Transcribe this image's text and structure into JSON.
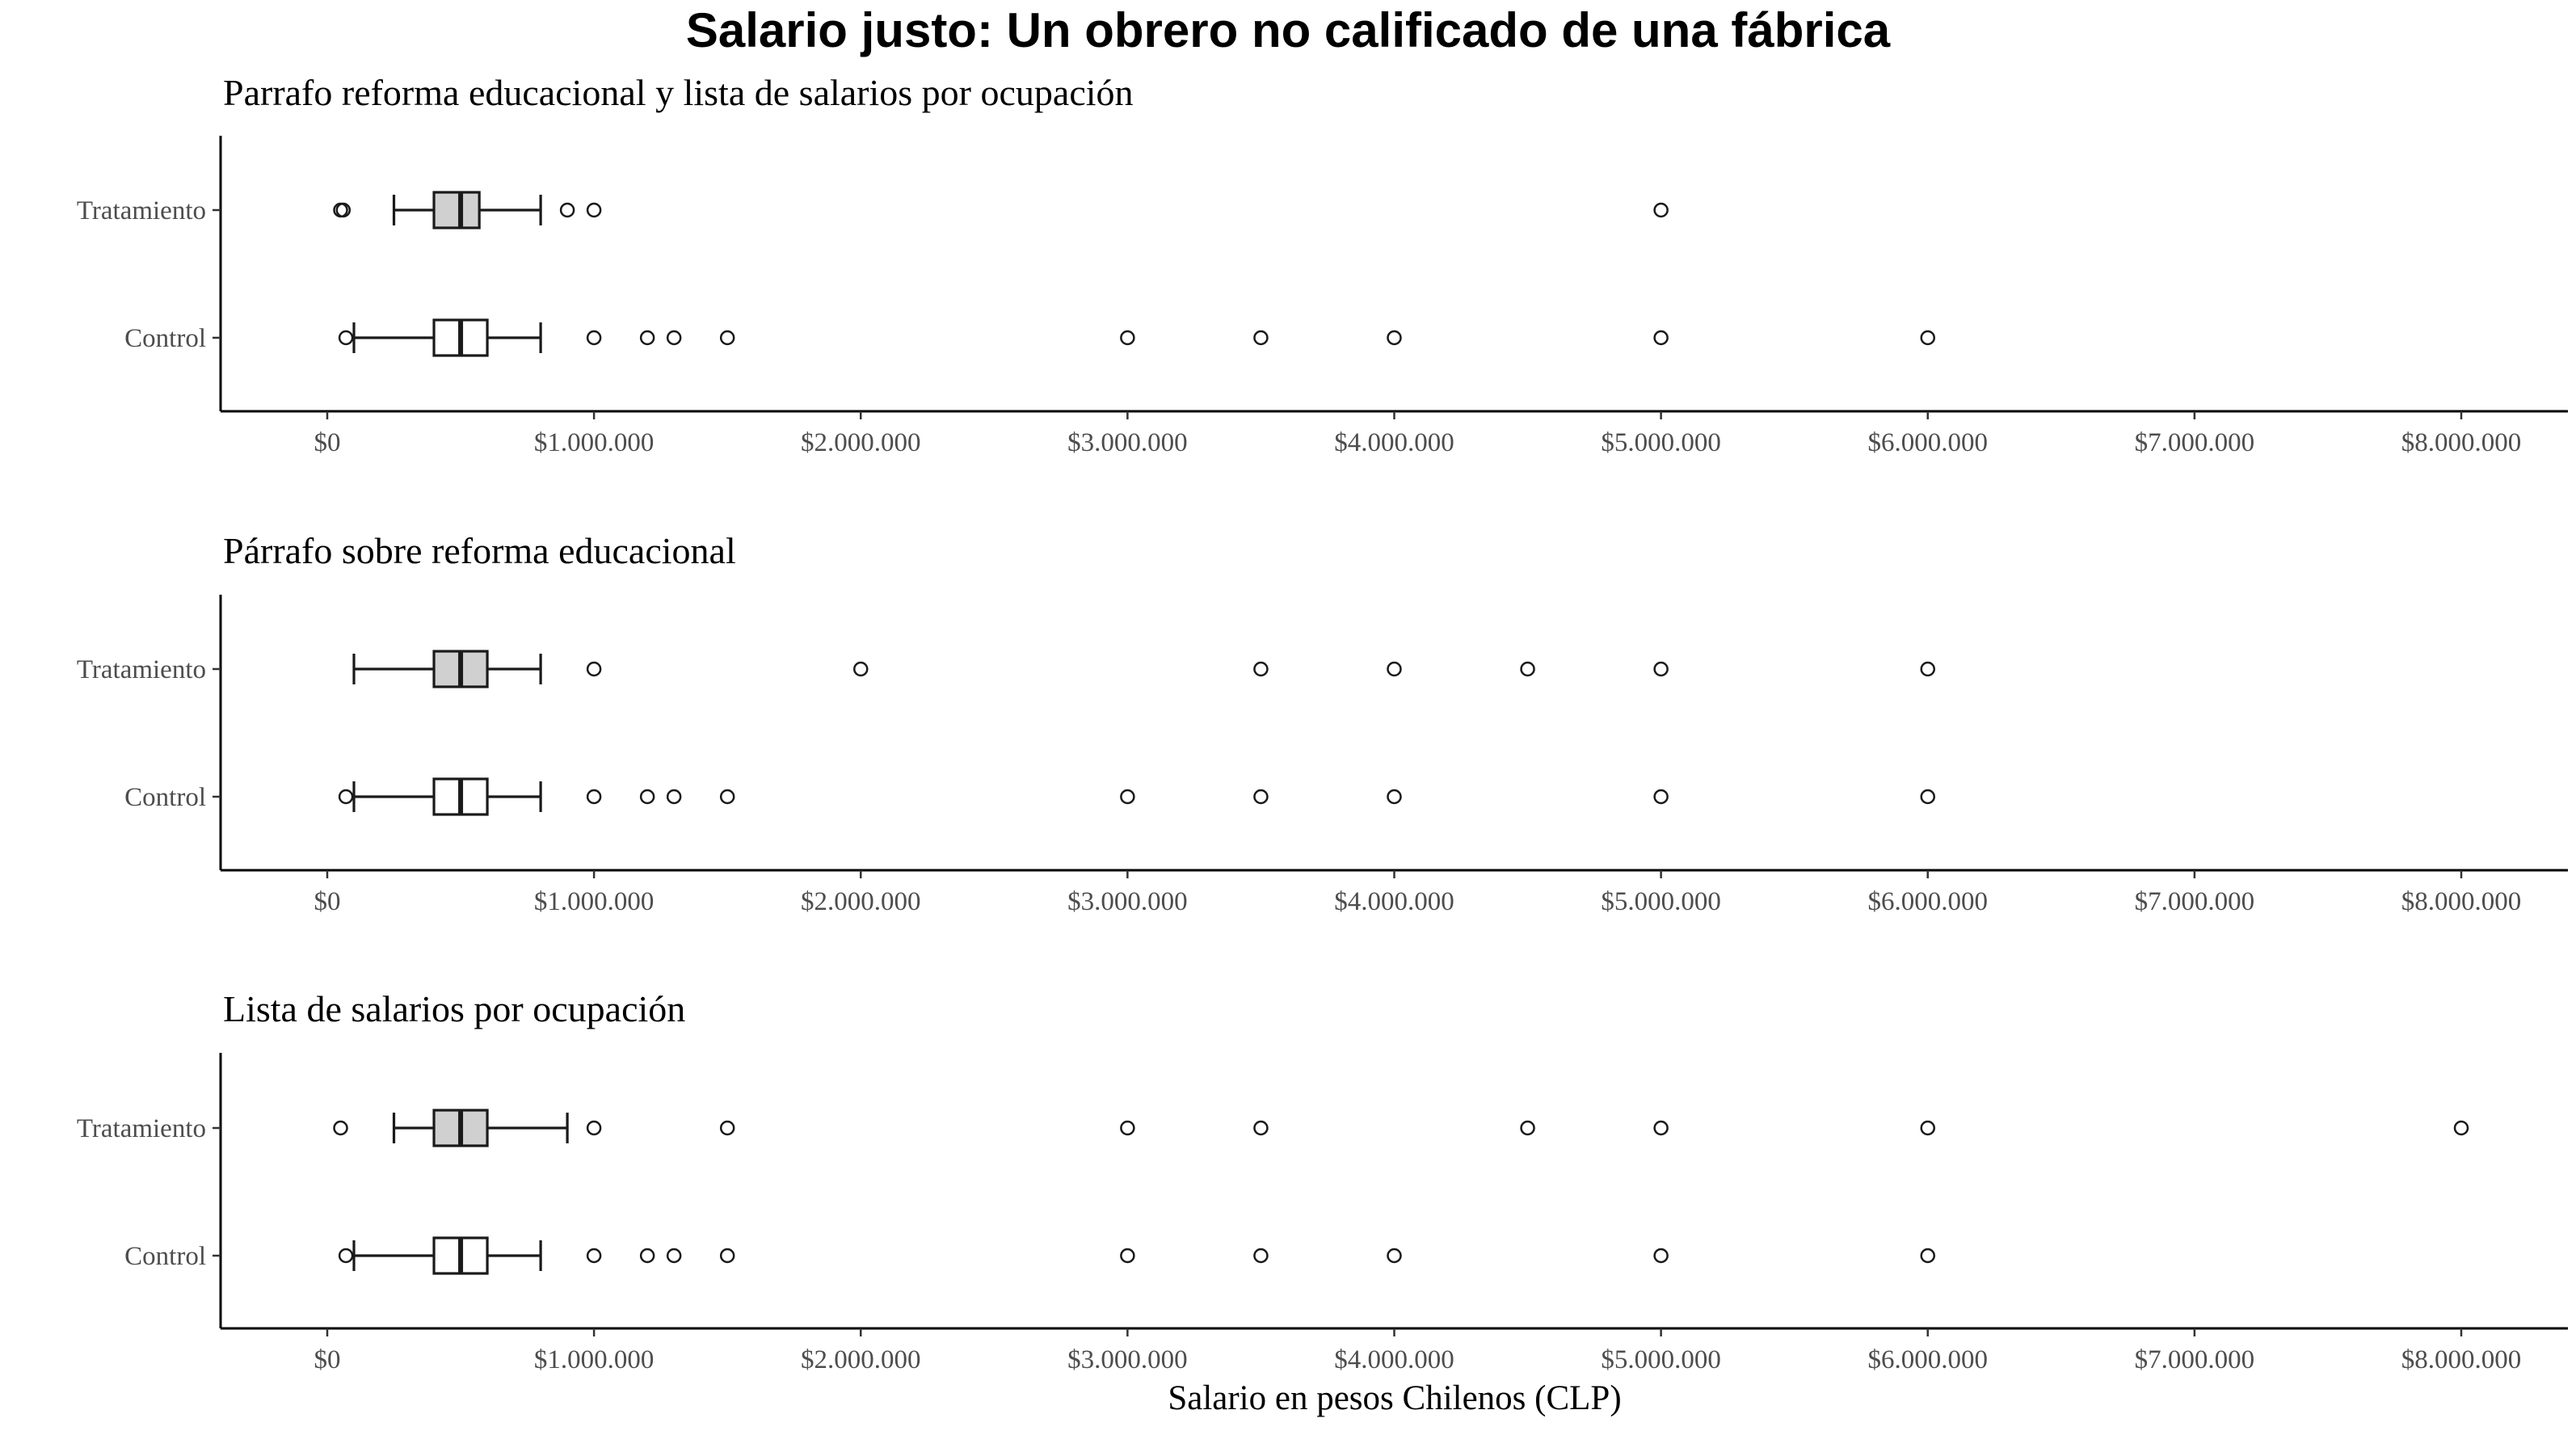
{
  "chart_data": {
    "title": "Salario justo: Un obrero no calificado de una fábrica",
    "xlabel": "Salario en pesos Chilenos (CLP)",
    "xlim": [
      -400000,
      8400000
    ],
    "x_ticks": [
      0,
      1000000,
      2000000,
      3000000,
      4000000,
      5000000,
      6000000,
      7000000,
      8000000
    ],
    "x_tick_labels": [
      "$0",
      "$1.000.000",
      "$2.000.000",
      "$3.000.000",
      "$4.000.000",
      "$5.000.000",
      "$6.000.000",
      "$7.000.000",
      "$8.000.000"
    ],
    "colors": {
      "Tratamiento": "#d0d0d0",
      "Control": "#ffffff",
      "line": "#1a1a1a"
    },
    "panels": [
      {
        "type": "boxplot",
        "title": "Parrafo reforma educacional y lista de salarios por ocupación",
        "groups": [
          {
            "label": "Tratamiento",
            "whisker_low": 250000,
            "q1": 400000,
            "median": 500000,
            "q3": 570000,
            "whisker_high": 800000,
            "outliers": [
              50000,
              60000,
              900000,
              1000000,
              5000000
            ]
          },
          {
            "label": "Control",
            "whisker_low": 100000,
            "q1": 400000,
            "median": 500000,
            "q3": 600000,
            "whisker_high": 800000,
            "outliers": [
              70000,
              1000000,
              1200000,
              1300000,
              1500000,
              3000000,
              3500000,
              4000000,
              5000000,
              6000000
            ]
          }
        ]
      },
      {
        "type": "boxplot",
        "title": "Párrafo sobre reforma educacional",
        "groups": [
          {
            "label": "Tratamiento",
            "whisker_low": 100000,
            "q1": 400000,
            "median": 500000,
            "q3": 600000,
            "whisker_high": 800000,
            "outliers": [
              1000000,
              2000000,
              3500000,
              4000000,
              4500000,
              5000000,
              6000000
            ]
          },
          {
            "label": "Control",
            "whisker_low": 100000,
            "q1": 400000,
            "median": 500000,
            "q3": 600000,
            "whisker_high": 800000,
            "outliers": [
              70000,
              1000000,
              1200000,
              1300000,
              1500000,
              3000000,
              3500000,
              4000000,
              5000000,
              6000000
            ]
          }
        ]
      },
      {
        "type": "boxplot",
        "title": "Lista de salarios por ocupación",
        "groups": [
          {
            "label": "Tratamiento",
            "whisker_low": 250000,
            "q1": 400000,
            "median": 500000,
            "q3": 600000,
            "whisker_high": 900000,
            "outliers": [
              50000,
              1000000,
              1500000,
              3000000,
              3500000,
              4500000,
              5000000,
              6000000,
              8000000
            ]
          },
          {
            "label": "Control",
            "whisker_low": 100000,
            "q1": 400000,
            "median": 500000,
            "q3": 600000,
            "whisker_high": 800000,
            "outliers": [
              70000,
              1000000,
              1200000,
              1300000,
              1500000,
              3000000,
              3500000,
              4000000,
              5000000,
              6000000
            ]
          }
        ]
      }
    ]
  }
}
